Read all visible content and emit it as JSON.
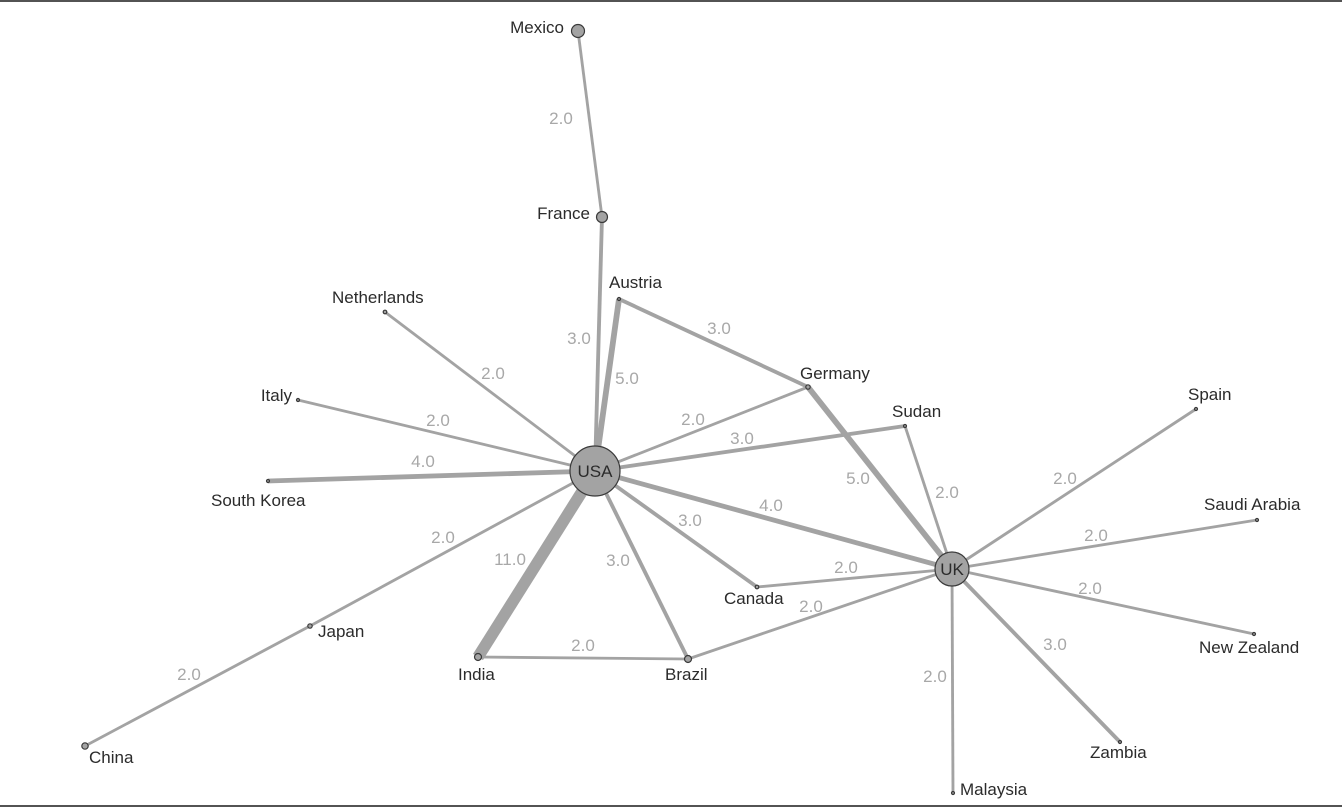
{
  "network": {
    "nodes": [
      {
        "id": "usa",
        "label": "USA",
        "hub": true
      },
      {
        "id": "uk",
        "label": "UK",
        "hub": true
      },
      {
        "id": "mexico",
        "label": "Mexico"
      },
      {
        "id": "france",
        "label": "France"
      },
      {
        "id": "austria",
        "label": "Austria"
      },
      {
        "id": "netherlands",
        "label": "Netherlands"
      },
      {
        "id": "germany",
        "label": "Germany"
      },
      {
        "id": "italy",
        "label": "Italy"
      },
      {
        "id": "sudan",
        "label": "Sudan"
      },
      {
        "id": "spain",
        "label": "Spain"
      },
      {
        "id": "south-korea",
        "label": "South Korea"
      },
      {
        "id": "saudi-arabia",
        "label": "Saudi Arabia"
      },
      {
        "id": "canada",
        "label": "Canada"
      },
      {
        "id": "japan",
        "label": "Japan"
      },
      {
        "id": "new-zealand",
        "label": "New Zealand"
      },
      {
        "id": "india",
        "label": "India"
      },
      {
        "id": "brazil",
        "label": "Brazil"
      },
      {
        "id": "china",
        "label": "China"
      },
      {
        "id": "zambia",
        "label": "Zambia"
      },
      {
        "id": "malaysia",
        "label": "Malaysia"
      }
    ],
    "edges": [
      {
        "source": "mexico",
        "target": "france",
        "weight": 2.0,
        "label": "2.0"
      },
      {
        "source": "france",
        "target": "usa",
        "weight": 3.0,
        "label": "3.0"
      },
      {
        "source": "austria",
        "target": "usa",
        "weight": 5.0,
        "label": "5.0"
      },
      {
        "source": "austria",
        "target": "germany",
        "weight": 3.0,
        "label": "3.0"
      },
      {
        "source": "netherlands",
        "target": "usa",
        "weight": 2.0,
        "label": "2.0"
      },
      {
        "source": "italy",
        "target": "usa",
        "weight": 2.0,
        "label": "2.0"
      },
      {
        "source": "south-korea",
        "target": "usa",
        "weight": 4.0,
        "label": "4.0"
      },
      {
        "source": "germany",
        "target": "usa",
        "weight": 2.0,
        "label": "2.0"
      },
      {
        "source": "sudan",
        "target": "usa",
        "weight": 3.0,
        "label": "3.0"
      },
      {
        "source": "germany",
        "target": "uk",
        "weight": 5.0,
        "label": "5.0"
      },
      {
        "source": "sudan",
        "target": "uk",
        "weight": 2.0,
        "label": "2.0"
      },
      {
        "source": "usa",
        "target": "uk",
        "weight": 4.0,
        "label": "4.0"
      },
      {
        "source": "canada",
        "target": "usa",
        "weight": 3.0,
        "label": "3.0"
      },
      {
        "source": "brazil",
        "target": "usa",
        "weight": 3.0,
        "label": "3.0"
      },
      {
        "source": "india",
        "target": "usa",
        "weight": 11.0,
        "label": "11.0"
      },
      {
        "source": "japan",
        "target": "usa",
        "weight": 2.0,
        "label": "2.0"
      },
      {
        "source": "china",
        "target": "japan",
        "weight": 2.0,
        "label": "2.0"
      },
      {
        "source": "india",
        "target": "brazil",
        "weight": 2.0,
        "label": "2.0"
      },
      {
        "source": "canada",
        "target": "uk",
        "weight": 2.0,
        "label": "2.0"
      },
      {
        "source": "brazil",
        "target": "uk",
        "weight": 2.0,
        "label": "2.0"
      },
      {
        "source": "spain",
        "target": "uk",
        "weight": 2.0,
        "label": "2.0"
      },
      {
        "source": "saudi-arabia",
        "target": "uk",
        "weight": 2.0,
        "label": "2.0"
      },
      {
        "source": "new-zealand",
        "target": "uk",
        "weight": 2.0,
        "label": "2.0"
      },
      {
        "source": "zambia",
        "target": "uk",
        "weight": 3.0,
        "label": "3.0"
      },
      {
        "source": "malaysia",
        "target": "uk",
        "weight": 2.0,
        "label": "2.0"
      }
    ]
  },
  "colors": {
    "edge": "#a3a3a3",
    "node_fill": "#a3a3a3",
    "node_stroke": "#3a3a3a",
    "label": "#2b2b2b",
    "weight_label": "#a8a8a8"
  }
}
